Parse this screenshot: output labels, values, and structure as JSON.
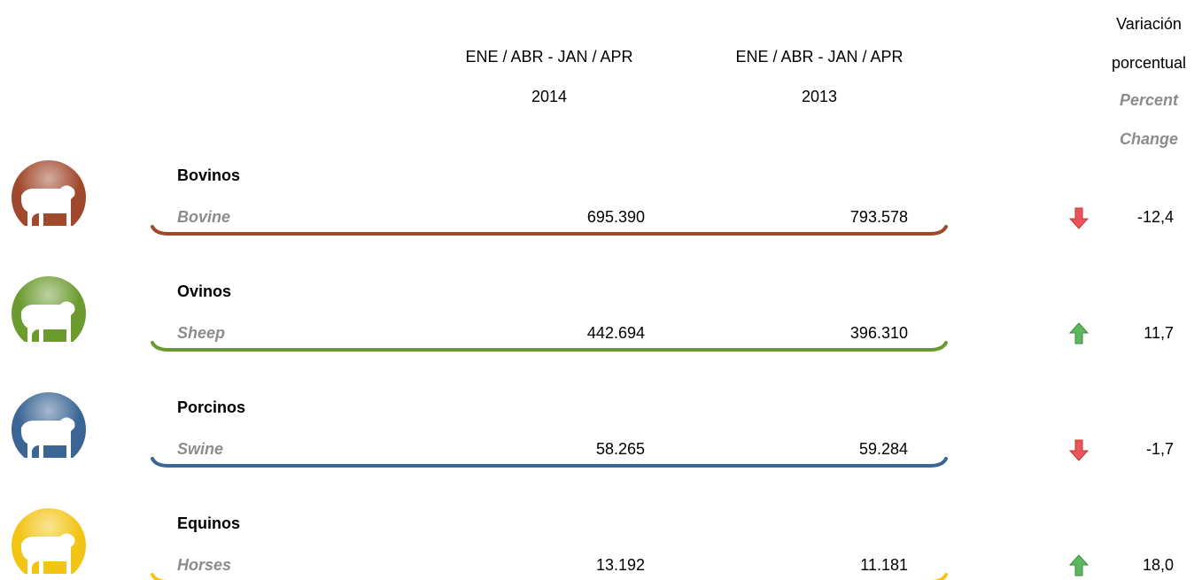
{
  "header": {
    "col_2014": {
      "period": "ENE / ABR - JAN / APR",
      "year": "2014"
    },
    "col_2013": {
      "period": "ENE / ABR - JAN / APR",
      "year": "2013"
    },
    "change": {
      "es_1": "Variación",
      "es_2": "porcentual",
      "en_1": "Percent",
      "en_2": "Change"
    }
  },
  "rows": [
    {
      "name_es": "Bovinos",
      "name_en": "Bovine",
      "v2014": "695.390",
      "v2013": "793.578",
      "change": "-12,4",
      "trend": "down",
      "color": "#a0482c"
    },
    {
      "name_es": "Ovinos",
      "name_en": "Sheep",
      "v2014": "442.694",
      "v2013": "396.310",
      "change": "11,7",
      "trend": "up",
      "color": "#6b9a2e"
    },
    {
      "name_es": "Porcinos",
      "name_en": "Swine",
      "v2014": "58.265",
      "v2013": "59.284",
      "change": "-1,7",
      "trend": "down",
      "color": "#3a6594"
    },
    {
      "name_es": "Equinos",
      "name_en": "Horses",
      "v2014": "13.192",
      "v2013": "11.181",
      "change": "18,0",
      "trend": "up",
      "color": "#f2c414"
    }
  ]
}
